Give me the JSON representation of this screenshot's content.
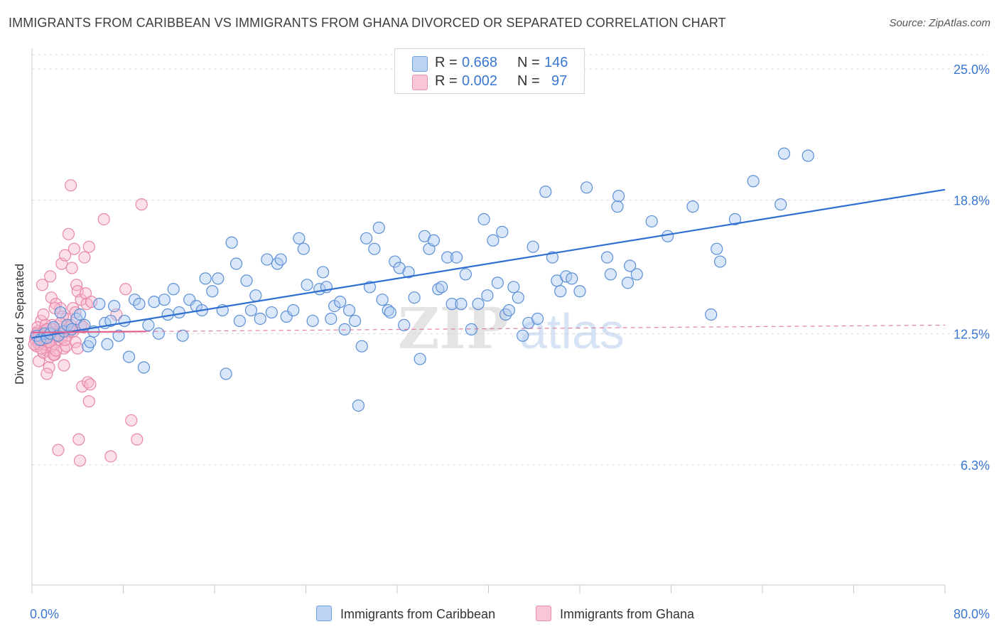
{
  "header": {
    "title": "IMMIGRANTS FROM CARIBBEAN VS IMMIGRANTS FROM GHANA DIVORCED OR SEPARATED CORRELATION CHART",
    "source": "Source: ZipAtlas.com"
  },
  "legend": {
    "r_label": "R =",
    "n_label": "N =",
    "rows": [
      {
        "r": "0.668",
        "n": "146",
        "color": "#9ec2ee"
      },
      {
        "r": "0.002",
        "n": "97",
        "color": "#f6aec7"
      }
    ]
  },
  "watermark": {
    "zip": "ZIP",
    "atlas": "atlas"
  },
  "colors": {
    "caribbean_fill": "#adc9ef",
    "caribbean_edge": "#5b8fd6",
    "caribbean_line": "#2f6fd0",
    "ghana_fill": "#f7b9cf",
    "ghana_edge": "#e887a8",
    "ghana_line": "#e0608e",
    "axis_text": "#3a77d0",
    "grid": "#dcdcdc"
  },
  "chart_data": {
    "type": "scatter",
    "title": "IMMIGRANTS FROM CARIBBEAN VS IMMIGRANTS FROM GHANA DIVORCED OR SEPARATED CORRELATION CHART",
    "xlabel": "",
    "ylabel": "Divorced or Separated",
    "xlim": [
      0,
      80
    ],
    "ylim": [
      0,
      27
    ],
    "x_tick_labels": [
      "0.0%",
      "80.0%"
    ],
    "y_ticks": [
      6.3,
      12.5,
      18.8,
      25.0
    ],
    "y_tick_labels": [
      "6.3%",
      "12.5%",
      "18.8%",
      "25.0%"
    ],
    "grid": true,
    "series": [
      {
        "name": "Immigrants from Caribbean",
        "r": 0.668,
        "n": 146,
        "trend": {
          "x": [
            0,
            80
          ],
          "y": [
            12.3,
            19.3
          ]
        },
        "points": [
          [
            0.4,
            12.4
          ],
          [
            0.7,
            12.2
          ],
          [
            1.1,
            12.5
          ],
          [
            1.3,
            12.3
          ],
          [
            1.6,
            12.5
          ],
          [
            1.9,
            12.8
          ],
          [
            2.3,
            12.4
          ],
          [
            2.5,
            13.5
          ],
          [
            2.8,
            12.6
          ],
          [
            3.1,
            12.9
          ],
          [
            3.5,
            12.7
          ],
          [
            3.9,
            13.2
          ],
          [
            4.2,
            13.4
          ],
          [
            4.6,
            12.9
          ],
          [
            4.9,
            11.9
          ],
          [
            5.1,
            12.1
          ],
          [
            5.4,
            12.6
          ],
          [
            5.9,
            13.9
          ],
          [
            6.4,
            13.0
          ],
          [
            6.6,
            12.0
          ],
          [
            6.9,
            13.1
          ],
          [
            7.2,
            13.8
          ],
          [
            7.6,
            12.4
          ],
          [
            8.1,
            13.1
          ],
          [
            8.5,
            11.4
          ],
          [
            9.0,
            14.1
          ],
          [
            9.4,
            13.9
          ],
          [
            9.8,
            10.9
          ],
          [
            10.2,
            12.9
          ],
          [
            10.7,
            14.0
          ],
          [
            11.1,
            12.5
          ],
          [
            11.6,
            14.1
          ],
          [
            11.9,
            13.4
          ],
          [
            12.4,
            14.6
          ],
          [
            12.9,
            13.5
          ],
          [
            13.2,
            12.4
          ],
          [
            13.8,
            14.1
          ],
          [
            14.4,
            13.8
          ],
          [
            14.9,
            13.6
          ],
          [
            15.2,
            15.1
          ],
          [
            15.8,
            14.5
          ],
          [
            16.3,
            15.1
          ],
          [
            16.7,
            13.6
          ],
          [
            17.0,
            10.6
          ],
          [
            17.5,
            16.8
          ],
          [
            17.9,
            15.8
          ],
          [
            18.2,
            13.1
          ],
          [
            18.8,
            15.0
          ],
          [
            19.2,
            13.6
          ],
          [
            19.6,
            14.3
          ],
          [
            20.0,
            13.2
          ],
          [
            20.6,
            16.0
          ],
          [
            21.0,
            13.5
          ],
          [
            21.5,
            15.8
          ],
          [
            21.8,
            16.0
          ],
          [
            22.3,
            13.3
          ],
          [
            22.9,
            13.6
          ],
          [
            23.4,
            17.0
          ],
          [
            23.8,
            16.5
          ],
          [
            24.1,
            14.8
          ],
          [
            24.6,
            13.1
          ],
          [
            25.2,
            14.6
          ],
          [
            25.5,
            15.4
          ],
          [
            25.8,
            14.7
          ],
          [
            26.2,
            13.2
          ],
          [
            26.5,
            13.8
          ],
          [
            27.0,
            14.0
          ],
          [
            27.4,
            12.7
          ],
          [
            27.8,
            13.6
          ],
          [
            28.3,
            13.1
          ],
          [
            28.6,
            9.1
          ],
          [
            28.9,
            11.9
          ],
          [
            29.3,
            17.0
          ],
          [
            29.6,
            14.7
          ],
          [
            30.0,
            16.5
          ],
          [
            30.4,
            17.5
          ],
          [
            30.7,
            14.1
          ],
          [
            31.2,
            13.6
          ],
          [
            31.4,
            13.5
          ],
          [
            31.8,
            15.9
          ],
          [
            32.2,
            15.6
          ],
          [
            32.6,
            12.9
          ],
          [
            33.0,
            15.4
          ],
          [
            33.5,
            14.2
          ],
          [
            34.0,
            11.3
          ],
          [
            34.4,
            17.1
          ],
          [
            34.8,
            16.5
          ],
          [
            35.2,
            16.9
          ],
          [
            35.6,
            14.6
          ],
          [
            35.9,
            14.7
          ],
          [
            36.4,
            16.1
          ],
          [
            36.8,
            13.9
          ],
          [
            37.2,
            16.1
          ],
          [
            37.6,
            13.9
          ],
          [
            38.0,
            15.3
          ],
          [
            38.5,
            12.7
          ],
          [
            39.1,
            13.9
          ],
          [
            39.6,
            17.9
          ],
          [
            39.9,
            14.3
          ],
          [
            40.4,
            16.9
          ],
          [
            40.8,
            14.9
          ],
          [
            41.2,
            17.3
          ],
          [
            41.5,
            13.4
          ],
          [
            41.8,
            13.6
          ],
          [
            42.2,
            14.7
          ],
          [
            42.6,
            14.2
          ],
          [
            43.0,
            12.4
          ],
          [
            43.5,
            13.0
          ],
          [
            43.9,
            16.6
          ],
          [
            44.3,
            13.2
          ],
          [
            45.0,
            19.2
          ],
          [
            45.6,
            16.1
          ],
          [
            46.0,
            15.0
          ],
          [
            46.3,
            14.5
          ],
          [
            46.8,
            15.2
          ],
          [
            47.3,
            15.1
          ],
          [
            48.0,
            14.5
          ],
          [
            48.6,
            19.4
          ],
          [
            50.4,
            16.1
          ],
          [
            50.7,
            15.3
          ],
          [
            51.3,
            18.5
          ],
          [
            51.4,
            19.0
          ],
          [
            52.2,
            14.9
          ],
          [
            52.4,
            15.7
          ],
          [
            53.0,
            15.3
          ],
          [
            54.3,
            17.8
          ],
          [
            55.7,
            17.1
          ],
          [
            57.9,
            18.5
          ],
          [
            59.5,
            13.4
          ],
          [
            60.0,
            16.5
          ],
          [
            60.3,
            15.9
          ],
          [
            61.6,
            17.9
          ],
          [
            63.2,
            19.7
          ],
          [
            65.6,
            18.6
          ],
          [
            65.9,
            21.0
          ],
          [
            68.0,
            20.9
          ]
        ]
      },
      {
        "name": "Immigrants from Ghana",
        "r": 0.002,
        "n": 97,
        "trend": {
          "x": [
            0,
            10
          ],
          "y": [
            12.55,
            12.6
          ]
        },
        "trend_dashed": {
          "x": [
            10,
            80
          ],
          "y": [
            12.6,
            12.9
          ]
        },
        "points": [
          [
            0.3,
            12.3
          ],
          [
            0.4,
            11.9
          ],
          [
            0.5,
            12.6
          ],
          [
            0.6,
            11.2
          ],
          [
            0.7,
            12.1
          ],
          [
            0.8,
            13.1
          ],
          [
            0.9,
            12.2
          ],
          [
            1.0,
            11.6
          ],
          [
            1.1,
            12.4
          ],
          [
            1.2,
            12.0
          ],
          [
            1.3,
            11.7
          ],
          [
            1.4,
            12.5
          ],
          [
            1.5,
            10.9
          ],
          [
            1.6,
            11.4
          ],
          [
            1.7,
            14.2
          ],
          [
            1.8,
            12.9
          ],
          [
            1.9,
            12.3
          ],
          [
            2.0,
            11.5
          ],
          [
            2.1,
            13.9
          ],
          [
            2.2,
            12.1
          ],
          [
            2.3,
            7.0
          ],
          [
            2.4,
            12.7
          ],
          [
            2.5,
            13.7
          ],
          [
            2.6,
            15.8
          ],
          [
            2.7,
            12.5
          ],
          [
            2.8,
            11.8
          ],
          [
            2.9,
            16.2
          ],
          [
            3.0,
            13.2
          ],
          [
            3.1,
            12.4
          ],
          [
            3.2,
            17.2
          ],
          [
            3.3,
            12.6
          ],
          [
            3.4,
            12.9
          ],
          [
            3.5,
            15.6
          ],
          [
            3.6,
            13.7
          ],
          [
            3.7,
            16.5
          ],
          [
            3.8,
            12.1
          ],
          [
            3.9,
            14.8
          ],
          [
            4.0,
            14.5
          ],
          [
            4.1,
            7.5
          ],
          [
            4.2,
            6.5
          ],
          [
            4.3,
            14.1
          ],
          [
            4.4,
            10.0
          ],
          [
            4.5,
            12.8
          ],
          [
            4.6,
            16.1
          ],
          [
            4.7,
            14.4
          ],
          [
            4.8,
            13.9
          ],
          [
            4.9,
            10.2
          ],
          [
            5.0,
            9.3
          ],
          [
            5.1,
            10.1
          ],
          [
            5.2,
            14.0
          ],
          [
            6.3,
            17.9
          ],
          [
            6.9,
            6.7
          ],
          [
            7.4,
            13.4
          ],
          [
            8.2,
            14.6
          ],
          [
            8.7,
            8.4
          ],
          [
            9.2,
            7.5
          ],
          [
            9.6,
            18.6
          ],
          [
            3.4,
            19.5
          ],
          [
            0.9,
            14.8
          ],
          [
            1.6,
            15.2
          ],
          [
            2.0,
            13.7
          ],
          [
            2.6,
            12.3
          ],
          [
            3.0,
            11.9
          ],
          [
            1.3,
            10.6
          ],
          [
            2.8,
            11.0
          ],
          [
            0.5,
            12.8
          ],
          [
            0.7,
            12.4
          ],
          [
            1.1,
            12.0
          ],
          [
            1.8,
            12.7
          ],
          [
            2.4,
            12.5
          ],
          [
            0.3,
            12.2
          ],
          [
            0.6,
            12.0
          ],
          [
            1.0,
            12.6
          ],
          [
            1.4,
            12.3
          ],
          [
            1.7,
            11.9
          ],
          [
            2.2,
            12.4
          ],
          [
            2.9,
            12.2
          ],
          [
            3.3,
            12.8
          ],
          [
            0.4,
            12.5
          ],
          [
            0.8,
            11.8
          ],
          [
            1.2,
            12.9
          ],
          [
            1.5,
            12.1
          ],
          [
            1.9,
            11.5
          ],
          [
            2.7,
            13.3
          ],
          [
            3.6,
            12.6
          ],
          [
            4.0,
            11.8
          ],
          [
            0.2,
            12.0
          ],
          [
            0.6,
            12.4
          ],
          [
            1.0,
            13.4
          ],
          [
            1.6,
            12.6
          ],
          [
            2.1,
            11.7
          ],
          [
            2.5,
            13.0
          ],
          [
            0.9,
            12.2
          ],
          [
            1.3,
            12.7
          ],
          [
            3.8,
            13.5
          ],
          [
            4.3,
            12.9
          ],
          [
            5.0,
            16.6
          ]
        ]
      }
    ]
  },
  "bottom_legend": {
    "caribbean": "Immigrants from Caribbean",
    "ghana": "Immigrants from Ghana"
  }
}
